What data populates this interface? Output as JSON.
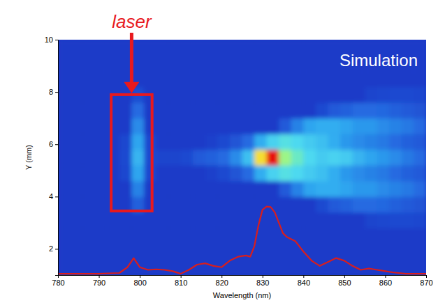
{
  "chart_data": {
    "type": "heatmap",
    "x_label": "Wavelength (nm)",
    "y_label": "Y (mm)",
    "xlim": [
      780,
      870
    ],
    "xticks": [
      780,
      790,
      800,
      810,
      820,
      830,
      840,
      850,
      860,
      870
    ],
    "ylim": [
      1,
      10
    ],
    "yticks": [
      2,
      4,
      6,
      8,
      10
    ],
    "heatmap": {
      "x_edges": [
        780,
        783,
        786,
        789,
        792,
        795,
        798,
        801,
        804,
        807,
        810,
        813,
        816,
        819,
        822,
        825,
        828,
        831,
        834,
        837,
        840,
        843,
        846,
        849,
        852,
        855,
        858,
        861,
        864,
        867,
        870
      ],
      "y_edges": [
        1,
        1.6,
        2.2,
        2.8,
        3.4,
        4,
        4.6,
        5.2,
        5.8,
        6.4,
        7,
        7.6,
        8.2,
        8.8,
        9.4,
        10
      ],
      "zlim": [
        0,
        1
      ],
      "cells": [
        [
          0,
          0,
          0,
          0,
          0,
          0,
          0,
          0,
          0,
          0,
          0,
          0,
          0,
          0,
          0,
          0,
          0,
          0,
          0,
          0,
          0,
          0,
          0,
          0,
          0,
          0,
          0,
          0,
          0,
          0
        ],
        [
          0,
          0,
          0,
          0,
          0,
          0,
          0,
          0,
          0,
          0,
          0,
          0,
          0,
          0,
          0,
          0,
          0,
          0,
          0,
          0,
          0,
          0,
          0,
          0,
          0,
          0,
          0,
          0,
          0,
          0
        ],
        [
          0,
          0,
          0,
          0,
          0,
          0,
          0,
          0,
          0,
          0,
          0,
          0,
          0,
          0,
          0,
          0,
          0,
          0,
          0,
          0,
          0,
          0,
          0,
          0,
          0,
          0,
          0,
          0,
          0,
          0
        ],
        [
          0,
          0,
          0,
          0,
          0,
          0,
          0,
          0,
          0,
          0,
          0,
          0,
          0,
          0,
          0,
          0,
          0,
          0,
          0,
          0,
          0,
          0,
          0,
          0,
          0,
          0.03,
          0.04,
          0.05,
          0.05,
          0.04
        ],
        [
          0,
          0,
          0,
          0,
          0,
          0,
          0.12,
          0,
          0,
          0,
          0,
          0,
          0,
          0,
          0,
          0,
          0,
          0,
          0,
          0,
          0,
          0.05,
          0.1,
          0.12,
          0.15,
          0.15,
          0.14,
          0.12,
          0.1,
          0.08
        ],
        [
          0,
          0,
          0,
          0,
          0,
          0,
          0.2,
          0,
          0,
          0,
          0,
          0,
          0,
          0,
          0,
          0,
          0,
          0,
          0.1,
          0.2,
          0.28,
          0.3,
          0.3,
          0.28,
          0.25,
          0.25,
          0.22,
          0.2,
          0.18,
          0.15
        ],
        [
          0,
          0,
          0,
          0,
          0,
          0.04,
          0.28,
          0.04,
          0,
          0,
          0,
          0,
          0.02,
          0.05,
          0.08,
          0.15,
          0.3,
          0.4,
          0.45,
          0.42,
          0.38,
          0.35,
          0.3,
          0.25,
          0.22,
          0.2,
          0.18,
          0.15,
          0.12,
          0.1
        ],
        [
          0,
          0,
          0,
          0,
          0,
          0.05,
          0.32,
          0.05,
          0.03,
          0.03,
          0.05,
          0.1,
          0.12,
          0.15,
          0.22,
          0.35,
          0.75,
          1.0,
          0.6,
          0.5,
          0.42,
          0.38,
          0.4,
          0.38,
          0.32,
          0.28,
          0.25,
          0.22,
          0.18,
          0.15
        ],
        [
          0,
          0,
          0,
          0,
          0,
          0.04,
          0.28,
          0.04,
          0,
          0,
          0,
          0,
          0.02,
          0.05,
          0.08,
          0.15,
          0.3,
          0.4,
          0.45,
          0.42,
          0.38,
          0.35,
          0.3,
          0.25,
          0.22,
          0.2,
          0.18,
          0.15,
          0.12,
          0.1
        ],
        [
          0,
          0,
          0,
          0,
          0,
          0,
          0.22,
          0,
          0,
          0,
          0,
          0,
          0,
          0,
          0,
          0,
          0,
          0,
          0.1,
          0.2,
          0.28,
          0.3,
          0.3,
          0.28,
          0.25,
          0.25,
          0.22,
          0.2,
          0.18,
          0.15
        ],
        [
          0,
          0,
          0,
          0,
          0,
          0,
          0.15,
          0,
          0,
          0,
          0,
          0,
          0,
          0,
          0,
          0,
          0,
          0,
          0,
          0,
          0,
          0.05,
          0.1,
          0.12,
          0.15,
          0.15,
          0.14,
          0.12,
          0.1,
          0.08
        ],
        [
          0,
          0,
          0,
          0,
          0,
          0,
          0.06,
          0,
          0,
          0,
          0,
          0,
          0,
          0,
          0,
          0,
          0,
          0,
          0,
          0,
          0,
          0,
          0,
          0,
          0,
          0.03,
          0.04,
          0.05,
          0.05,
          0.04
        ],
        [
          0,
          0,
          0,
          0,
          0,
          0,
          0,
          0,
          0,
          0,
          0,
          0,
          0,
          0,
          0,
          0,
          0,
          0,
          0,
          0,
          0,
          0,
          0,
          0,
          0,
          0,
          0,
          0,
          0,
          0
        ],
        [
          0,
          0,
          0,
          0,
          0,
          0,
          0,
          0,
          0,
          0,
          0,
          0,
          0,
          0,
          0,
          0,
          0,
          0,
          0,
          0,
          0,
          0,
          0,
          0,
          0,
          0,
          0,
          0,
          0,
          0
        ],
        [
          0,
          0,
          0,
          0,
          0,
          0,
          0,
          0,
          0,
          0,
          0,
          0,
          0,
          0,
          0,
          0,
          0,
          0,
          0,
          0,
          0,
          0,
          0,
          0,
          0,
          0,
          0,
          0,
          0,
          0
        ]
      ]
    },
    "x": [
      780,
      785,
      790,
      795,
      797,
      798.5,
      800,
      802,
      804,
      806,
      808,
      810,
      812,
      814,
      816,
      818,
      820,
      822,
      824,
      826,
      827,
      828,
      829,
      830,
      831,
      832,
      833,
      834,
      835,
      836,
      838,
      840,
      842,
      844,
      846,
      848,
      850,
      852,
      854,
      856,
      858,
      860,
      862,
      865,
      870
    ],
    "series": [
      {
        "type": "line",
        "color": "#d81e1e",
        "values": [
          1.05,
          1.05,
          1.05,
          1.08,
          1.3,
          1.65,
          1.3,
          1.2,
          1.22,
          1.2,
          1.15,
          1.05,
          1.2,
          1.4,
          1.45,
          1.35,
          1.3,
          1.55,
          1.7,
          1.75,
          1.7,
          2.1,
          2.9,
          3.5,
          3.62,
          3.6,
          3.4,
          3.0,
          2.6,
          2.45,
          2.3,
          1.9,
          1.55,
          1.35,
          1.5,
          1.65,
          1.55,
          1.35,
          1.2,
          1.25,
          1.2,
          1.15,
          1.1,
          1.05,
          1.05
        ]
      }
    ],
    "annotations": [
      {
        "text": "laser",
        "color": "#e8191e",
        "box_x": [
          793,
          803
        ],
        "box_y": [
          3.45,
          7.9
        ]
      },
      {
        "text": "Simulation",
        "color": "#ffffff"
      }
    ]
  }
}
